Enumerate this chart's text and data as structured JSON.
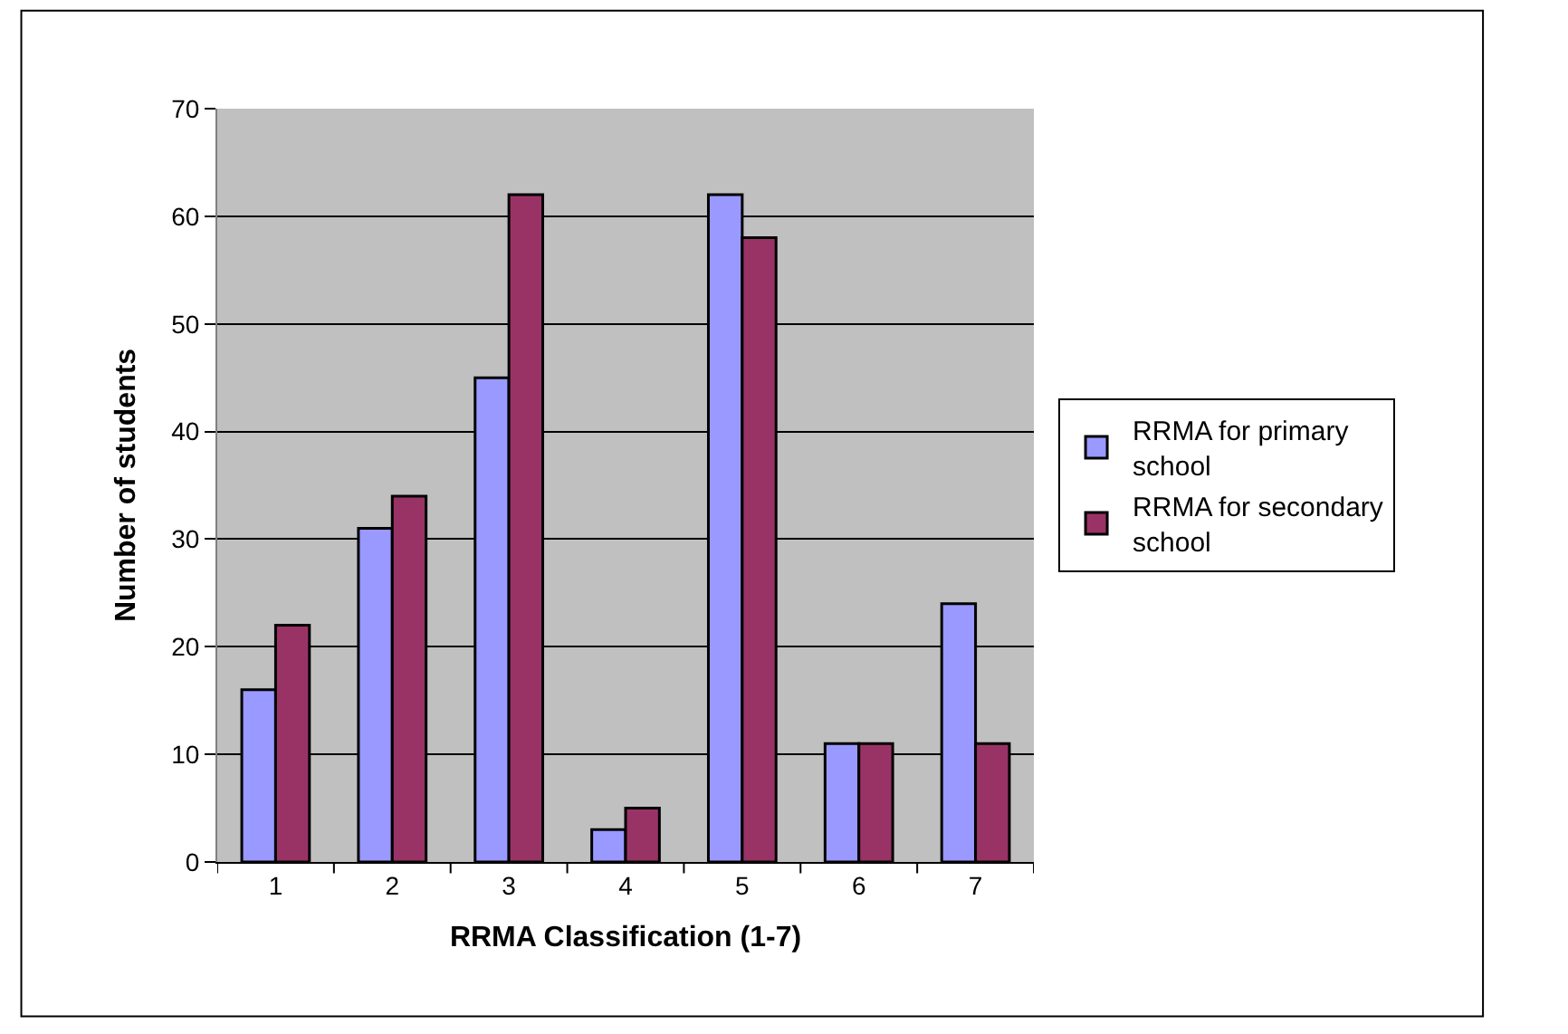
{
  "chart_data": {
    "type": "bar",
    "xlabel": "RRMA Classification (1-7)",
    "ylabel": "Number of students",
    "categories": [
      "1",
      "2",
      "3",
      "4",
      "5",
      "6",
      "7"
    ],
    "series": [
      {
        "name": "RRMA for primary school",
        "color": "#9999ff",
        "values": [
          16,
          31,
          45,
          3,
          62,
          11,
          24
        ]
      },
      {
        "name": "RRMA for secondary school",
        "color": "#993366",
        "values": [
          22,
          34,
          62,
          5,
          58,
          11,
          11
        ]
      }
    ],
    "ylim": [
      0,
      70
    ],
    "yticks": [
      0,
      10,
      20,
      30,
      40,
      50,
      60,
      70
    ],
    "grid": "y",
    "legend": "right"
  }
}
